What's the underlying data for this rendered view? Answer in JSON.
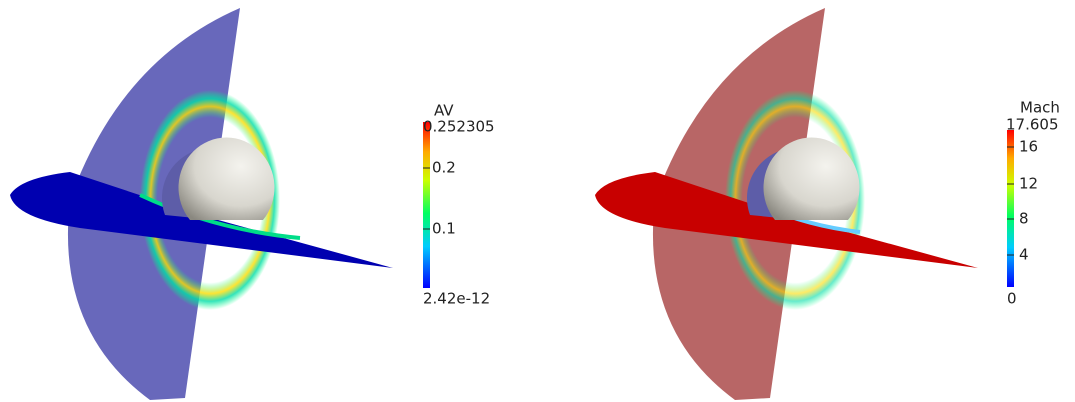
{
  "panels": [
    {
      "colorbar": {
        "title": "AV",
        "max_label": "0.252305",
        "ticks": [
          "0.2",
          "0.1"
        ],
        "min_label": "2.42e-12"
      }
    },
    {
      "colorbar": {
        "title": "Mach",
        "max_label": "17.605",
        "ticks": [
          "16",
          "12",
          "8",
          "4"
        ],
        "min_label": "0"
      }
    }
  ]
}
